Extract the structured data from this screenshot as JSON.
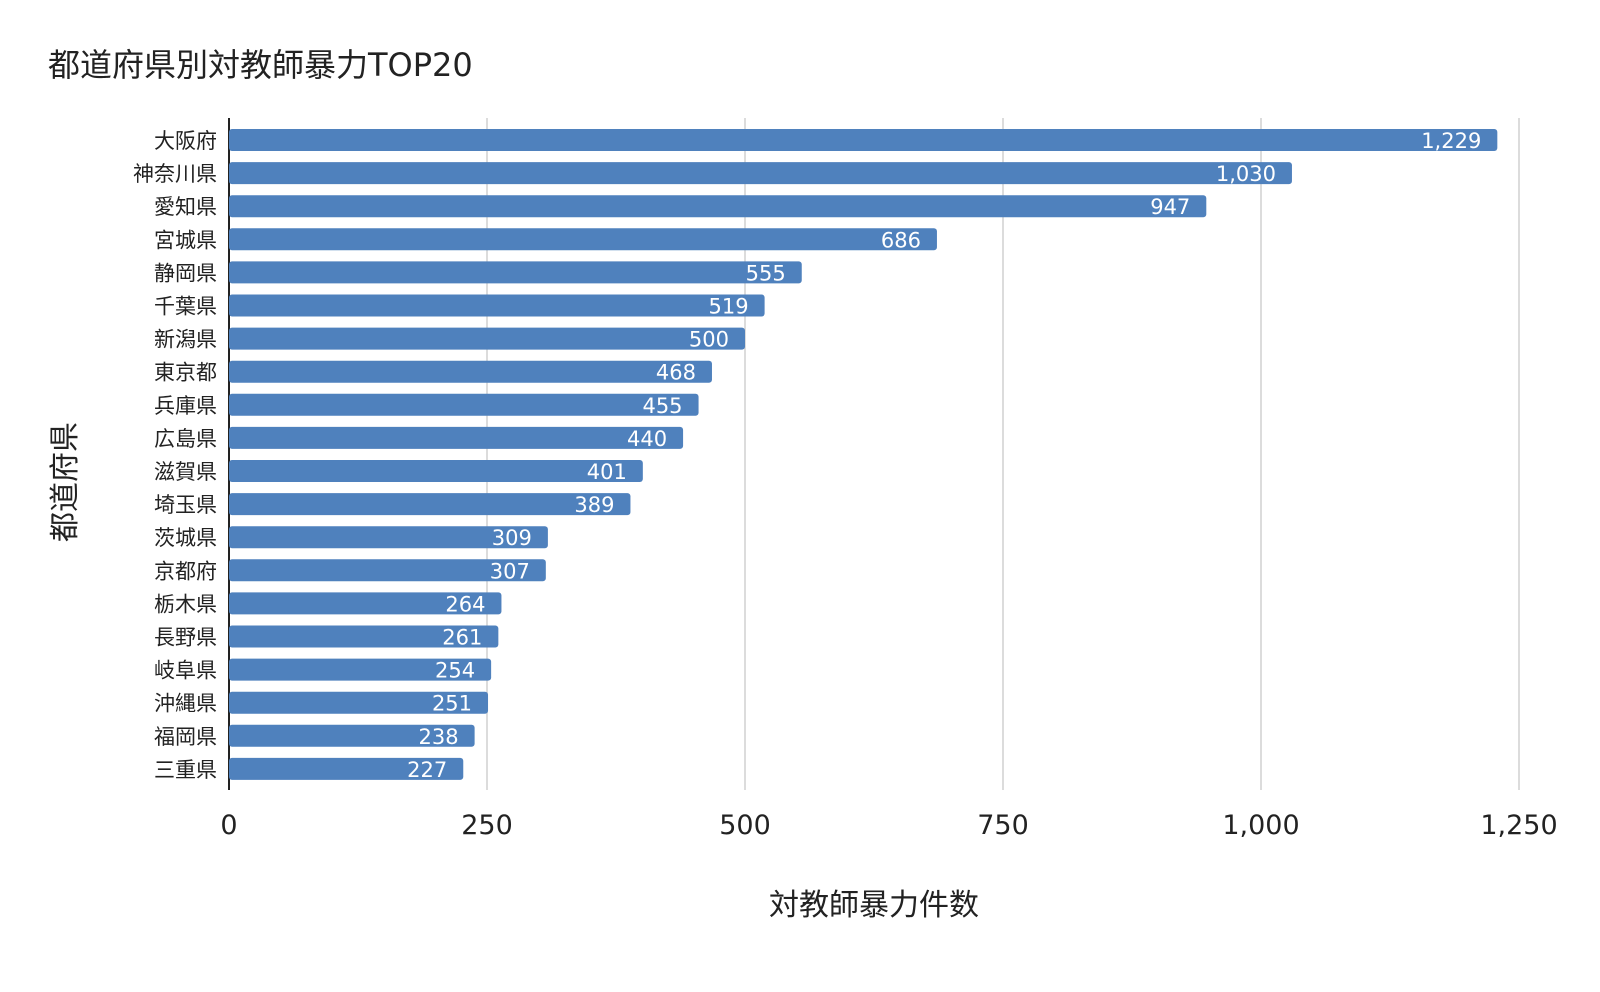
{
  "chart_data": {
    "type": "bar",
    "orientation": "horizontal",
    "title": "都道府県別対教師暴力TOP20",
    "xlabel": "対教師暴力件数",
    "ylabel": "都道府県",
    "xlim": [
      0,
      1250
    ],
    "xticks": [
      0,
      250,
      500,
      750,
      1000,
      1250
    ],
    "xtick_labels": [
      "0",
      "250",
      "500",
      "750",
      "1,000",
      "1,250"
    ],
    "grid": "vertical",
    "legend": "none",
    "bar_color": "#4f81bd",
    "categories": [
      "大阪府",
      "神奈川県",
      "愛知県",
      "宮城県",
      "静岡県",
      "千葉県",
      "新潟県",
      "東京都",
      "兵庫県",
      "広島県",
      "滋賀県",
      "埼玉県",
      "茨城県",
      "京都府",
      "栃木県",
      "長野県",
      "岐阜県",
      "沖縄県",
      "福岡県",
      "三重県"
    ],
    "values": [
      1229,
      1030,
      947,
      686,
      555,
      519,
      500,
      468,
      455,
      440,
      401,
      389,
      309,
      307,
      264,
      261,
      254,
      251,
      238,
      227
    ],
    "value_labels": [
      "1,229",
      "1,030",
      "947",
      "686",
      "555",
      "519",
      "500",
      "468",
      "455",
      "440",
      "401",
      "389",
      "309",
      "307",
      "264",
      "261",
      "254",
      "251",
      "238",
      "227"
    ]
  }
}
